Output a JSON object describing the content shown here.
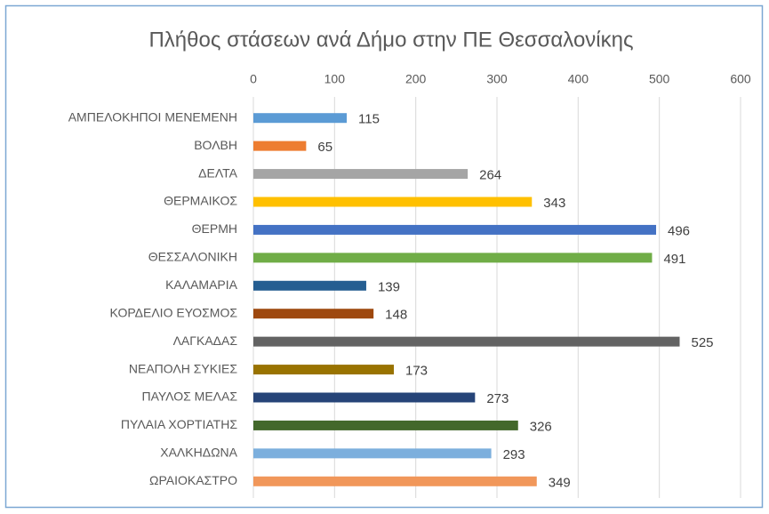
{
  "chart_data": {
    "type": "bar",
    "orientation": "horizontal",
    "title": "Πλήθος στάσεων ανά Δήμο στην ΠΕ Θεσσαλονίκης",
    "categories": [
      "ΑΜΠΕΛΟΚΗΠΟΙ ΜΕΝΕΜΕΝΗ",
      "ΒΟΛΒΗ",
      "ΔΕΛΤΑ",
      "ΘΕΡΜΑΙΚΟΣ",
      "ΘΕΡΜΗ",
      "ΘΕΣΣΑΛΟΝΙΚΗ",
      "ΚΑΛΑΜΑΡΙΑ",
      "ΚΟΡΔΕΛΙΟ ΕΥΟΣΜΟΣ",
      "ΛΑΓΚΑΔΑΣ",
      "ΝΕΑΠΟΛΗ ΣΥΚΙΕΣ",
      "ΠΑΥΛΟΣ ΜΕΛΑΣ",
      "ΠΥΛΑΙΑ ΧΟΡΤΙΑΤΗΣ",
      "ΧΑΛΚΗΔΩΝΑ",
      "ΩΡΑΙΟΚΑΣΤΡΟ"
    ],
    "values": [
      115,
      65,
      264,
      343,
      496,
      491,
      139,
      148,
      525,
      173,
      273,
      326,
      293,
      349
    ],
    "colors": [
      "#5b9bd5",
      "#ed7d31",
      "#a5a5a5",
      "#ffc000",
      "#4472c4",
      "#70ad47",
      "#255e91",
      "#9e480e",
      "#636363",
      "#997300",
      "#264478",
      "#43682b",
      "#7cafdd",
      "#f1975a"
    ],
    "xlim": [
      0,
      600
    ],
    "xticks": [
      0,
      100,
      200,
      300,
      400,
      500,
      600
    ],
    "grid": true
  }
}
